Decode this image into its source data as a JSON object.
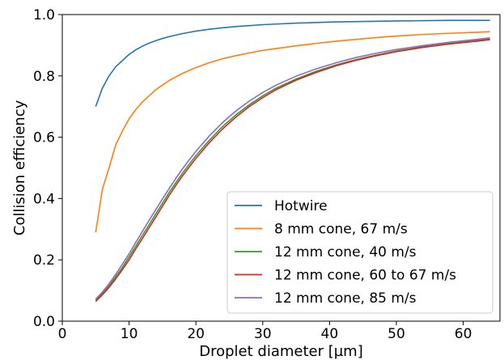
{
  "chart_data": {
    "type": "line",
    "title": "",
    "xlabel": "Droplet diameter [µm]",
    "ylabel": "Collision efficiency",
    "xlim": [
      0,
      65.5
    ],
    "ylim": [
      0.0,
      1.0
    ],
    "xticks": [
      0,
      10,
      20,
      30,
      40,
      50,
      60
    ],
    "xtick_labels": [
      "0",
      "10",
      "20",
      "30",
      "40",
      "50",
      "60"
    ],
    "yticks": [
      0.0,
      0.2,
      0.4,
      0.6,
      0.8,
      1.0
    ],
    "ytick_labels": [
      "0.0",
      "0.2",
      "0.4",
      "0.6",
      "0.8",
      "1.0"
    ],
    "grid": false,
    "legend_position": "lower-right",
    "series": [
      {
        "name": "Hotwire",
        "color": "#1f77b4",
        "x": [
          5,
          6,
          7,
          8,
          9,
          10,
          11,
          12,
          13,
          14,
          15,
          16,
          17,
          18,
          19,
          20,
          22,
          24,
          26,
          28,
          30,
          32,
          35,
          38,
          41,
          44,
          47,
          50,
          54,
          58,
          62,
          64
        ],
        "y": [
          0.7,
          0.76,
          0.8,
          0.83,
          0.85,
          0.87,
          0.885,
          0.897,
          0.907,
          0.915,
          0.922,
          0.928,
          0.933,
          0.938,
          0.942,
          0.946,
          0.952,
          0.957,
          0.961,
          0.964,
          0.967,
          0.969,
          0.972,
          0.974,
          0.976,
          0.977,
          0.978,
          0.979,
          0.98,
          0.981,
          0.981,
          0.981
        ]
      },
      {
        "name": "8 mm cone, 67 m/s",
        "color": "#ff7f0e",
        "x": [
          5,
          6,
          7,
          8,
          9,
          10,
          11,
          12,
          13,
          14,
          15,
          16,
          17,
          18,
          19,
          20,
          22,
          24,
          26,
          28,
          30,
          32,
          35,
          38,
          41,
          44,
          47,
          50,
          54,
          58,
          62,
          64
        ],
        "y": [
          0.29,
          0.43,
          0.5,
          0.575,
          0.62,
          0.66,
          0.69,
          0.715,
          0.735,
          0.755,
          0.77,
          0.785,
          0.797,
          0.808,
          0.818,
          0.827,
          0.843,
          0.856,
          0.866,
          0.875,
          0.883,
          0.889,
          0.898,
          0.906,
          0.913,
          0.919,
          0.925,
          0.93,
          0.935,
          0.939,
          0.942,
          0.944
        ]
      },
      {
        "name": "12 mm cone, 40 m/s",
        "color": "#2ca02c",
        "x": [
          5,
          6,
          7,
          8,
          9,
          10,
          11,
          12,
          13,
          14,
          15,
          16,
          17,
          18,
          19,
          20,
          22,
          24,
          26,
          28,
          30,
          32,
          35,
          38,
          41,
          44,
          47,
          50,
          54,
          58,
          62,
          64
        ],
        "y": [
          0.068,
          0.09,
          0.115,
          0.145,
          0.175,
          0.21,
          0.245,
          0.28,
          0.315,
          0.35,
          0.385,
          0.42,
          0.452,
          0.483,
          0.512,
          0.54,
          0.59,
          0.635,
          0.673,
          0.706,
          0.735,
          0.76,
          0.79,
          0.815,
          0.836,
          0.853,
          0.868,
          0.881,
          0.895,
          0.906,
          0.915,
          0.92
        ]
      },
      {
        "name": "12 mm cone, 60 to 67 m/s",
        "color": "#d62728",
        "x": [
          5,
          6,
          7,
          8,
          9,
          10,
          11,
          12,
          13,
          14,
          15,
          16,
          17,
          18,
          19,
          20,
          22,
          24,
          26,
          28,
          30,
          32,
          35,
          38,
          41,
          44,
          47,
          50,
          54,
          58,
          62,
          64
        ],
        "y": [
          0.064,
          0.086,
          0.11,
          0.138,
          0.168,
          0.2,
          0.236,
          0.27,
          0.305,
          0.34,
          0.375,
          0.41,
          0.443,
          0.474,
          0.503,
          0.531,
          0.582,
          0.627,
          0.666,
          0.7,
          0.729,
          0.755,
          0.786,
          0.811,
          0.833,
          0.851,
          0.866,
          0.879,
          0.893,
          0.904,
          0.913,
          0.918
        ]
      },
      {
        "name": "12 mm cone, 85 m/s",
        "color": "#9467bd",
        "x": [
          5,
          6,
          7,
          8,
          9,
          10,
          11,
          12,
          13,
          14,
          15,
          16,
          17,
          18,
          19,
          20,
          22,
          24,
          26,
          28,
          30,
          32,
          35,
          38,
          41,
          44,
          47,
          50,
          54,
          58,
          62,
          64
        ],
        "y": [
          0.072,
          0.095,
          0.122,
          0.153,
          0.186,
          0.22,
          0.257,
          0.293,
          0.329,
          0.364,
          0.399,
          0.433,
          0.466,
          0.497,
          0.526,
          0.554,
          0.604,
          0.648,
          0.686,
          0.718,
          0.746,
          0.77,
          0.799,
          0.823,
          0.843,
          0.86,
          0.874,
          0.886,
          0.899,
          0.91,
          0.919,
          0.924
        ]
      }
    ]
  }
}
